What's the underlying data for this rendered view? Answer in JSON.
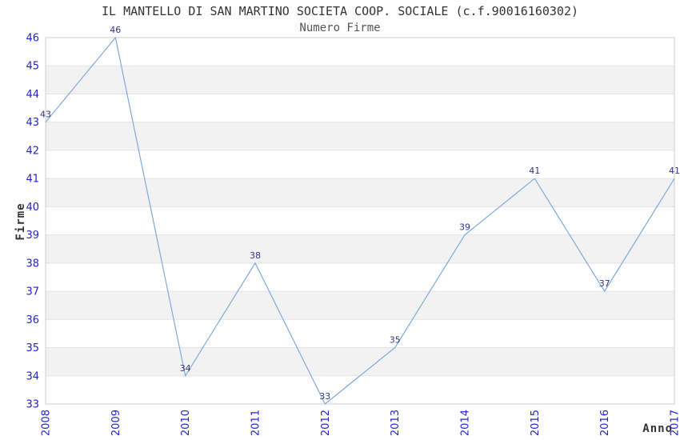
{
  "chart_data": {
    "type": "line",
    "title": "IL MANTELLO DI SAN MARTINO SOCIETA COOP. SOCIALE (c.f.90016160302)",
    "subtitle": "Numero Firme",
    "xlabel": "Anno",
    "ylabel": "Firme",
    "categories": [
      "2008",
      "2009",
      "2010",
      "2011",
      "2012",
      "2013",
      "2014",
      "2015",
      "2016",
      "2017"
    ],
    "series": [
      {
        "name": "Numero Firme",
        "values": [
          43,
          46,
          34,
          38,
          33,
          35,
          39,
          41,
          37,
          41
        ]
      }
    ],
    "point_labels": [
      "43",
      "46",
      "34",
      "38",
      "33",
      "35",
      "39",
      "41",
      "37",
      "41"
    ],
    "y_ticks": [
      33,
      34,
      35,
      36,
      37,
      38,
      39,
      40,
      41,
      42,
      43,
      44,
      45,
      46
    ],
    "ylim": [
      33,
      46
    ],
    "grid": "horizontal gridlines with alternating shaded bands",
    "legend_position": "none",
    "colors": {
      "line": "#7fa9dc",
      "tick_label": "#2323cc",
      "point_label": "#333388",
      "band": "#f2f2f2",
      "gridline": "#e2e2e2",
      "plot_border": "#cccccc",
      "background": "#ffffff"
    }
  }
}
